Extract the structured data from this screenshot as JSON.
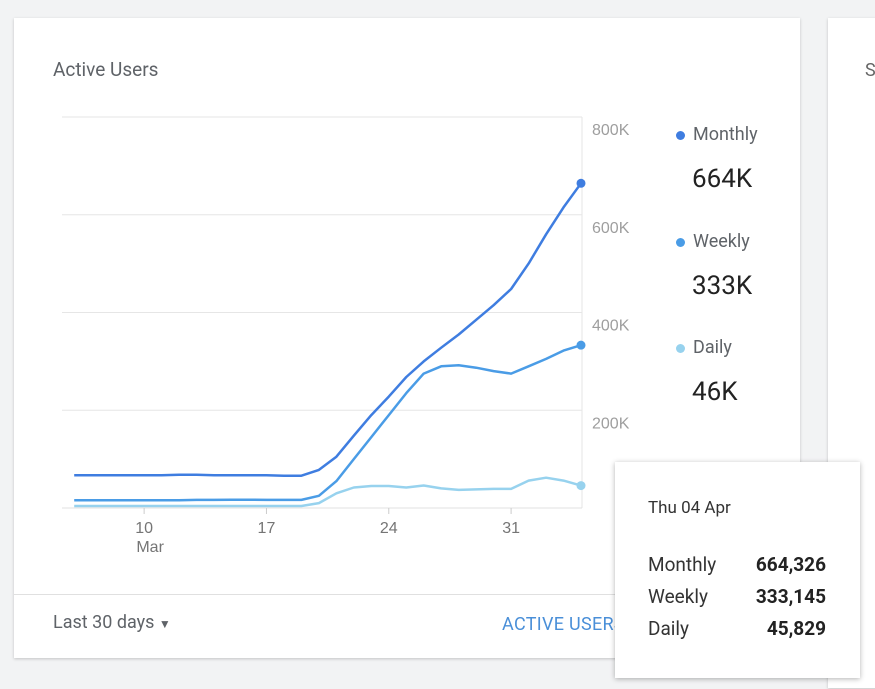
{
  "chart_data": {
    "type": "line",
    "title": "Active Users",
    "x": [
      6,
      7,
      8,
      9,
      10,
      11,
      12,
      13,
      14,
      15,
      16,
      17,
      18,
      19,
      20,
      21,
      22,
      23,
      24,
      25,
      26,
      27,
      28,
      29,
      30,
      31,
      32,
      33,
      34,
      35
    ],
    "xlim": [
      5.3,
      35
    ],
    "xticks": [
      10,
      17,
      24,
      31
    ],
    "xtick_month": "Mar",
    "ylim": [
      0,
      800000
    ],
    "yticks": [
      {
        "value": 200000,
        "label": "200K"
      },
      {
        "value": 400000,
        "label": "400K"
      },
      {
        "value": 600000,
        "label": "600K"
      },
      {
        "value": 800000,
        "label": "800K"
      }
    ],
    "grid": true,
    "series": [
      {
        "name": "Monthly",
        "color": "#3f7de0",
        "summary": "664K",
        "values": [
          67000,
          67000,
          67000,
          67000,
          67000,
          67000,
          68000,
          68000,
          67000,
          67000,
          67000,
          67000,
          66000,
          66000,
          78000,
          105000,
          148000,
          190000,
          228000,
          268000,
          300000,
          328000,
          355000,
          385000,
          415000,
          448000,
          500000,
          560000,
          615000,
          664326
        ]
      },
      {
        "name": "Weekly",
        "color": "#4a9ce6",
        "summary": "333K",
        "values": [
          16000,
          16000,
          16000,
          16000,
          16000,
          16000,
          16000,
          16500,
          16500,
          17000,
          17000,
          16500,
          16500,
          16500,
          25000,
          55000,
          100000,
          145000,
          190000,
          235000,
          275000,
          290000,
          292000,
          287000,
          280000,
          275000,
          290000,
          305000,
          322000,
          333145
        ]
      },
      {
        "name": "Daily",
        "color": "#97d2ee",
        "summary": "46K",
        "values": [
          4000,
          4000,
          4000,
          4000,
          4000,
          4000,
          4000,
          4000,
          4000,
          4000,
          4000,
          4000,
          4000,
          4000,
          10000,
          30000,
          42000,
          45000,
          45000,
          42000,
          46000,
          40000,
          37000,
          38000,
          39000,
          39000,
          56000,
          62000,
          56000,
          45829
        ]
      }
    ],
    "range_selector": "Last 30 days",
    "report_link": "ACTIVE USERS REPORT",
    "tooltip": {
      "title": "Thu 04 Apr",
      "rows": [
        {
          "name": "Monthly",
          "value": "664,326"
        },
        {
          "name": "Weekly",
          "value": "333,145"
        },
        {
          "name": "Daily",
          "value": "45,829"
        }
      ]
    }
  },
  "side_card_title": "S"
}
